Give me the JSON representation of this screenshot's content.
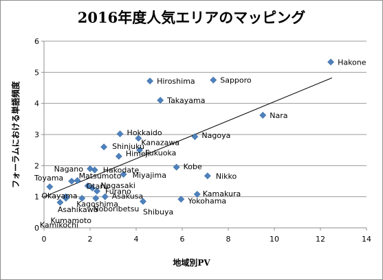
{
  "chart_data": {
    "type": "scatter",
    "title": "2016年度人気エリアのマッピング",
    "xlabel": "地域別PV",
    "ylabel": "フォーラムにおける単語頻度",
    "xlim": [
      0,
      14
    ],
    "ylim": [
      0,
      6
    ],
    "x_ticks": [
      0,
      2,
      4,
      6,
      8,
      10,
      12,
      14
    ],
    "y_ticks": [
      0,
      1,
      2,
      3,
      4,
      5,
      6
    ],
    "grid": "horizontal",
    "marker_color": "#4f81bd",
    "trendline": {
      "type": "linear",
      "x": [
        0,
        12.5
      ],
      "y": [
        1.0,
        4.82
      ],
      "color": "#000000"
    },
    "points": [
      {
        "label": "Hakone",
        "x": 12.45,
        "y": 5.33
      },
      {
        "label": "Hiroshima",
        "x": 4.6,
        "y": 4.72
      },
      {
        "label": "Sapporo",
        "x": 7.35,
        "y": 4.75
      },
      {
        "label": "Takayama",
        "x": 5.05,
        "y": 4.1
      },
      {
        "label": "Nara",
        "x": 9.5,
        "y": 3.62
      },
      {
        "label": "Hokkaido",
        "x": 3.3,
        "y": 3.02
      },
      {
        "label": "Nagoya",
        "x": 6.55,
        "y": 2.93
      },
      {
        "label": "Kanazawa",
        "x": 4.1,
        "y": 2.88
      },
      {
        "label": "Shinjuku",
        "x": 2.6,
        "y": 2.6
      },
      {
        "label": "Fukuoka",
        "x": 4.15,
        "y": 2.5
      },
      {
        "label": "Himeji",
        "x": 3.25,
        "y": 2.3
      },
      {
        "label": "Nagano",
        "x": 2.0,
        "y": 1.9
      },
      {
        "label": "Hakodate",
        "x": 2.2,
        "y": 1.86
      },
      {
        "label": "Kobe",
        "x": 5.75,
        "y": 1.95
      },
      {
        "label": "Miyajima",
        "x": 3.45,
        "y": 1.72
      },
      {
        "label": "Nikko",
        "x": 7.1,
        "y": 1.67
      },
      {
        "label": "Toyama",
        "x": 1.2,
        "y": 1.5
      },
      {
        "label": "Matsumoto",
        "x": 1.45,
        "y": 1.52
      },
      {
        "label": "Otaru",
        "x": 1.9,
        "y": 1.35
      },
      {
        "label": "Nagasaki",
        "x": 2.1,
        "y": 1.28
      },
      {
        "label": "Furano",
        "x": 2.3,
        "y": 1.18
      },
      {
        "label": "Okayama",
        "x": 0.25,
        "y": 1.32
      },
      {
        "label": "Kamakura",
        "x": 6.65,
        "y": 1.08
      },
      {
        "label": "Asakusa",
        "x": 2.65,
        "y": 1.0
      },
      {
        "label": "Yokohama",
        "x": 5.95,
        "y": 0.92
      },
      {
        "label": "Kagoshima",
        "x": 1.65,
        "y": 0.95
      },
      {
        "label": "Asahikawa",
        "x": 0.95,
        "y": 0.95
      },
      {
        "label": "Noboribetsu",
        "x": 2.25,
        "y": 0.95
      },
      {
        "label": "Shibuya",
        "x": 4.3,
        "y": 0.85
      },
      {
        "label": "Kumamoto",
        "x": 0.7,
        "y": 0.82
      },
      {
        "label": "Kamikochi",
        "x": 0.95,
        "y": 1.0
      }
    ]
  }
}
